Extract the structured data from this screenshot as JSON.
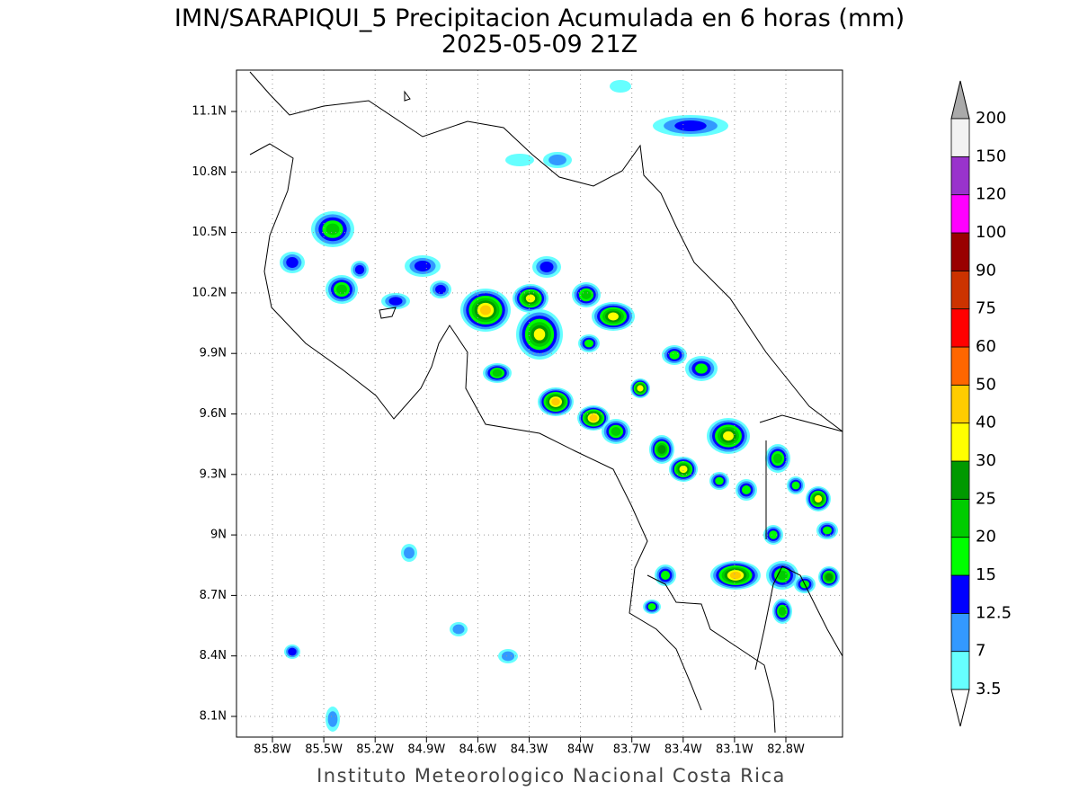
{
  "title": "IMN/SARAPIQUI_5 Precipitacion Acumulada en 6 horas (mm)",
  "subtitle": "2025-05-09 21Z",
  "map": {
    "lon_labels": [
      "85.8W",
      "85.5W",
      "85.2W",
      "84.9W",
      "84.6W",
      "84.3W",
      "84W",
      "83.7W",
      "83.4W",
      "83.1W",
      "82.8W"
    ],
    "lat_labels": [
      "11.1N",
      "10.8N",
      "10.5N",
      "10.2N",
      "9.9N",
      "9.6N",
      "9.3N",
      "9N",
      "8.7N",
      "8.4N",
      "8.1N"
    ]
  },
  "colorbar": {
    "labels": [
      "3.5",
      "7",
      "12.5",
      "15",
      "20",
      "25",
      "30",
      "40",
      "50",
      "60",
      "75",
      "90",
      "100",
      "120",
      "150",
      "200"
    ],
    "colors": [
      "#66ffff",
      "#3399ff",
      "#0000ff",
      "#00ff00",
      "#00cc00",
      "#009900",
      "#ffff00",
      "#ffcc00",
      "#ff6600",
      "#ff0000",
      "#cc3300",
      "#990000",
      "#ff00ff",
      "#9933cc",
      "#f2f2f2"
    ],
    "over_color": "#aaaaaa",
    "under_color": "#ffffff"
  },
  "footer": "Instituto Meteorologico Nacional Costa Rica"
}
